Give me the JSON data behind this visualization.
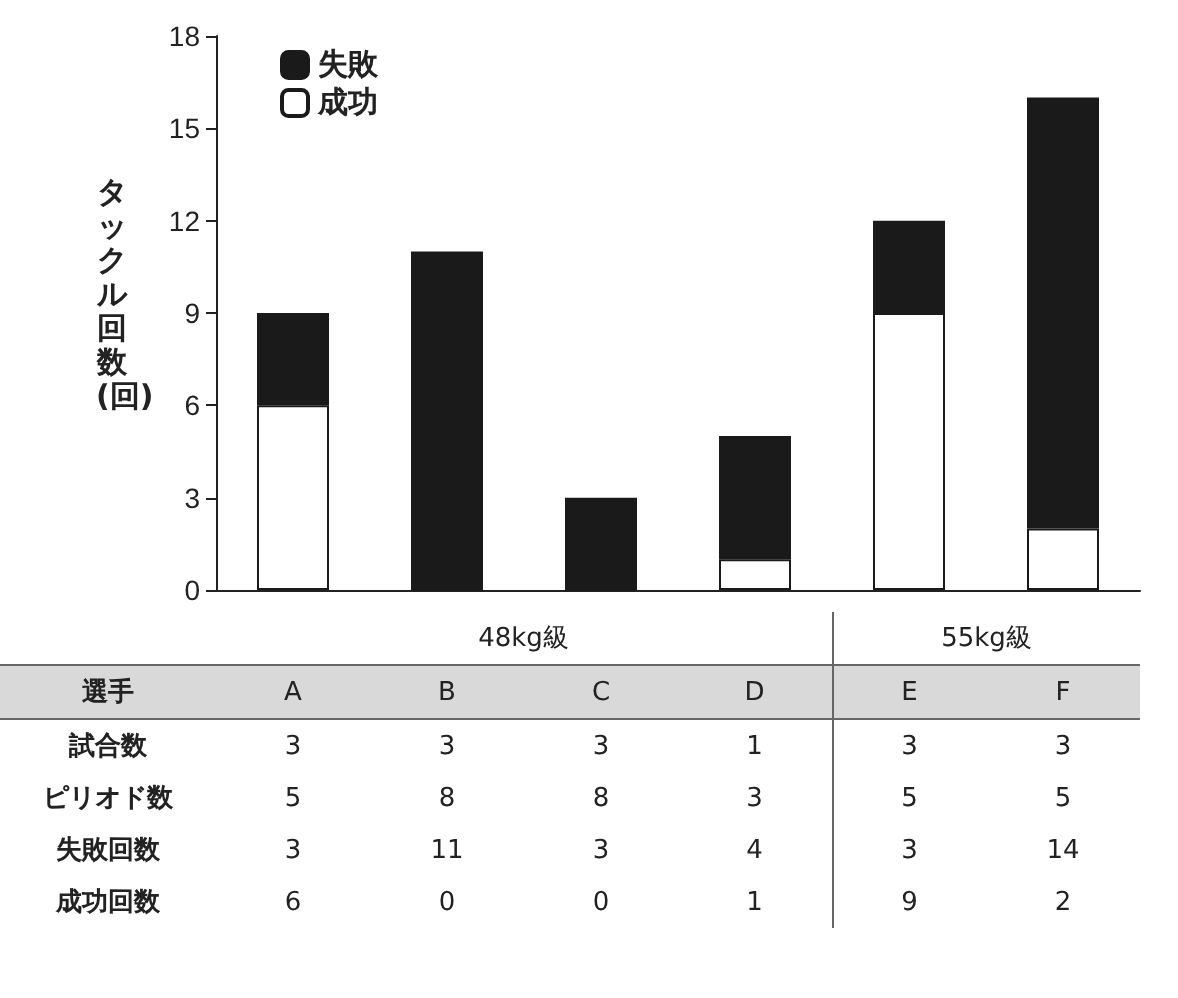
{
  "chart_data": {
    "type": "bar",
    "stacked": true,
    "categories": [
      "A",
      "B",
      "C",
      "D",
      "E",
      "F"
    ],
    "series": [
      {
        "name": "成功",
        "color": "#ffffff",
        "values": [
          6,
          0,
          0,
          1,
          9,
          2
        ]
      },
      {
        "name": "失敗",
        "color": "#1a1a1a",
        "values": [
          3,
          11,
          3,
          4,
          3,
          14
        ]
      }
    ],
    "ylabel": "タックル回数(回)",
    "ylim": [
      0,
      18
    ],
    "yticks": [
      0,
      3,
      6,
      9,
      12,
      15,
      18
    ],
    "grid": false,
    "legend": "top left",
    "data_labels": true,
    "annotations": [
      "48kg級",
      "55kg級",
      "選手",
      "試合数",
      "ピリオド数",
      "失敗回数",
      "成功回数",
      "3",
      "3",
      "3",
      "1",
      "3",
      "3",
      "5",
      "8",
      "8",
      "3",
      "5",
      "5"
    ]
  }
}
